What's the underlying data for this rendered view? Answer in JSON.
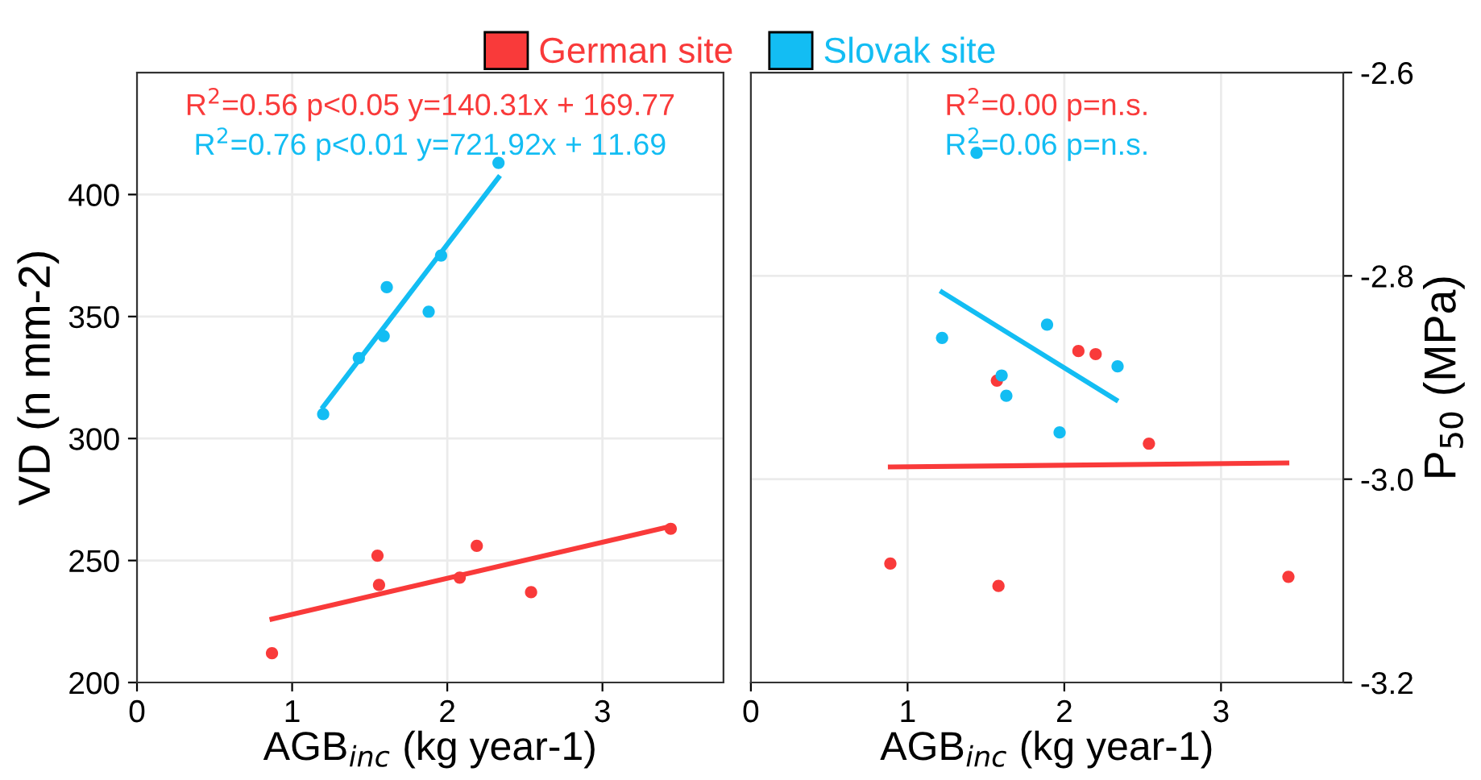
{
  "chart_data": [
    {
      "type": "scatter",
      "xlabel": "AGB$_{inc}$ (kg year-1)",
      "ylabel": "VD (n mm-2)",
      "xlim": [
        0,
        3.78
      ],
      "xticks": [
        0,
        1,
        2,
        3
      ],
      "ylim": [
        200,
        450
      ],
      "yticks": [
        200,
        250,
        300,
        350,
        400
      ],
      "grid": true,
      "legend": "top",
      "marker": "circle",
      "annotations": [
        "R$^{2}$=0.56 p<0.05 y=140.31x + 169.77",
        "R$^{2}$=0.76 p<0.01 y=721.92x + 11.69"
      ],
      "series": [
        {
          "name": "German site",
          "color": "#f93a3a",
          "x": [
            0.87,
            1.55,
            1.56,
            2.08,
            2.19,
            2.54,
            3.44
          ],
          "values": [
            212,
            252,
            240,
            243,
            256,
            237,
            263
          ]
        },
        {
          "name": "Slovak site",
          "color": "#13bdf3",
          "x": [
            1.2,
            1.43,
            1.59,
            1.61,
            1.88,
            1.96,
            2.33
          ],
          "values": [
            310,
            333,
            342,
            362,
            352,
            375,
            413
          ]
        },
        {
          "type": "line",
          "marker": "none",
          "color": "#f93a3a",
          "x": [
            0.87,
            3.44
          ],
          "values": [
            226,
            264
          ]
        },
        {
          "type": "line",
          "marker": "none",
          "color": "#13bdf3",
          "x": [
            1.2,
            2.33
          ],
          "values": [
            313,
            407
          ]
        }
      ]
    },
    {
      "type": "scatter",
      "xlabel": "AGB$_{inc}$ (kg year-1)",
      "ylabel": "P$_{50}$ (MPa)",
      "xlim": [
        0,
        3.78
      ],
      "xticks": [
        0,
        1,
        2,
        3
      ],
      "ylim": [
        -3.2,
        -2.6
      ],
      "yticks": [
        {
          "value": -3.2,
          "label": "-3.2"
        },
        {
          "value": -3.0,
          "label": "-3.0"
        },
        {
          "value": -2.8,
          "label": "-2.8"
        },
        {
          "value": -2.6,
          "label": "-2.6"
        }
      ],
      "grid": true,
      "marker": "circle",
      "annotations": [
        "R$^{2}$=0.00 p=n.s.",
        "R$^{2}$=0.06 p=n.s."
      ],
      "series": [
        {
          "color": "#f93a3a",
          "x": [
            0.89,
            1.57,
            1.58,
            2.09,
            2.2,
            2.54,
            3.43
          ],
          "values": [
            -3.083,
            -2.903,
            -3.105,
            -2.874,
            -2.877,
            -2.965,
            -3.096
          ]
        },
        {
          "color": "#13bdf3",
          "x": [
            1.22,
            1.44,
            1.6,
            1.63,
            1.89,
            1.97,
            2.34
          ],
          "values": [
            -2.861,
            -2.679,
            -2.898,
            -2.918,
            -2.848,
            -2.954,
            -2.889
          ]
        },
        {
          "type": "line",
          "marker": "none",
          "color": "#f93a3a",
          "x": [
            0.89,
            3.42
          ],
          "values": [
            -2.988,
            -2.984
          ]
        },
        {
          "type": "line",
          "marker": "none",
          "color": "#13bdf3",
          "x": [
            1.22,
            2.33
          ],
          "values": [
            -2.816,
            -2.922
          ]
        }
      ]
    }
  ]
}
